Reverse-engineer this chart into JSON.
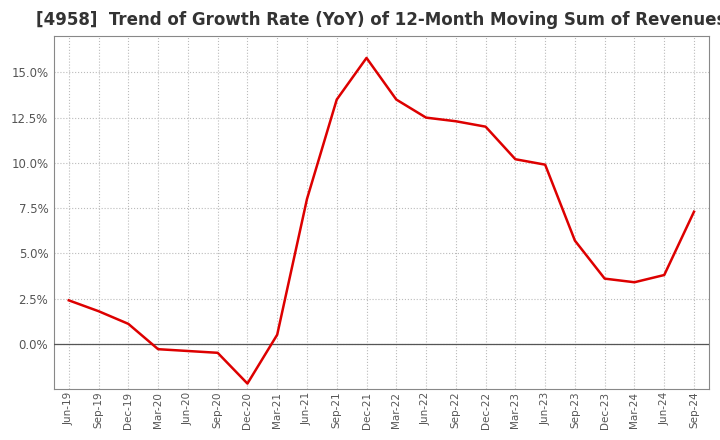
{
  "title": "[4958]  Trend of Growth Rate (YoY) of 12-Month Moving Sum of Revenues",
  "title_fontsize": 12,
  "line_color": "#DD0000",
  "line_width": 1.8,
  "background_color": "#FFFFFF",
  "plot_bg_color": "#FFFFFF",
  "grid_color": "#BBBBBB",
  "ylim": [
    -0.025,
    0.17
  ],
  "yticks": [
    0.0,
    0.025,
    0.05,
    0.075,
    0.1,
    0.125,
    0.15
  ],
  "values": [
    0.024,
    0.018,
    0.011,
    -0.003,
    -0.004,
    -0.005,
    -0.022,
    0.005,
    0.08,
    0.135,
    0.158,
    0.135,
    0.125,
    0.123,
    0.12,
    0.102,
    0.099,
    0.057,
    0.036,
    0.034,
    0.038,
    0.073
  ],
  "xtick_labels": [
    "Jun-19",
    "Sep-19",
    "Dec-19",
    "Mar-20",
    "Jun-20",
    "Sep-20",
    "Dec-20",
    "Mar-21",
    "Jun-21",
    "Sep-21",
    "Dec-21",
    "Mar-22",
    "Jun-22",
    "Sep-22",
    "Dec-22",
    "Mar-23",
    "Jun-23",
    "Sep-23",
    "Dec-23",
    "Mar-24",
    "Jun-24",
    "Sep-24"
  ]
}
